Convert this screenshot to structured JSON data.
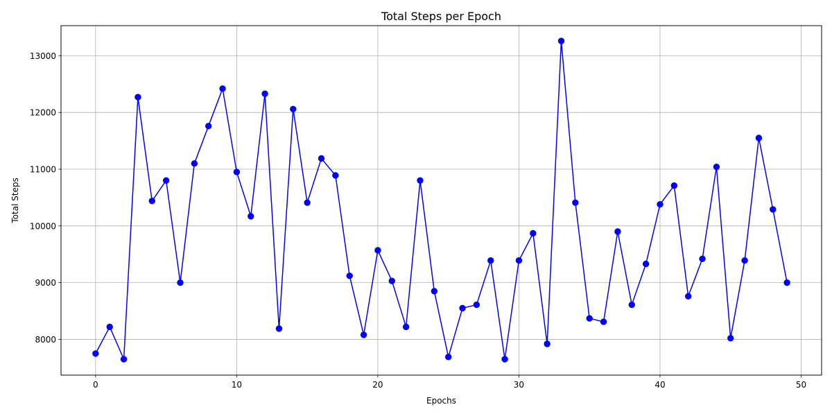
{
  "chart_data": {
    "type": "line",
    "title": "Total Steps per Epoch",
    "xlabel": "Epochs",
    "ylabel": "Total Steps",
    "xlim": [
      -2.45,
      51.45
    ],
    "ylim": [
      7370,
      13530
    ],
    "x_ticks": [
      0,
      10,
      20,
      30,
      40,
      50
    ],
    "y_ticks": [
      8000,
      9000,
      10000,
      11000,
      12000,
      13000
    ],
    "grid": true,
    "line_color": "#0000ff",
    "marker": "circle",
    "series": [
      {
        "x": [
          0,
          1,
          2,
          3,
          4,
          5,
          6,
          7,
          8,
          9,
          10,
          11,
          12,
          13,
          14,
          15,
          16,
          17,
          18,
          19,
          20,
          21,
          22,
          23,
          24,
          25,
          26,
          27,
          28,
          29,
          30,
          31,
          32,
          33,
          34,
          35,
          36,
          37,
          38,
          39,
          40,
          41,
          42,
          43,
          44,
          45,
          46,
          47,
          48,
          49
        ],
        "values": [
          7750,
          8220,
          7650,
          12270,
          10440,
          10800,
          9000,
          11100,
          11760,
          12420,
          10950,
          10170,
          12330,
          8190,
          12060,
          10410,
          11190,
          10890,
          9120,
          8080,
          9570,
          9030,
          8220,
          10800,
          8850,
          7690,
          8550,
          8610,
          9390,
          7650,
          9390,
          9870,
          7920,
          13260,
          10410,
          8370,
          8310,
          9900,
          8610,
          9330,
          10380,
          10710,
          8760,
          9420,
          11040,
          8020,
          9390,
          11550,
          10290,
          9000
        ]
      }
    ]
  }
}
